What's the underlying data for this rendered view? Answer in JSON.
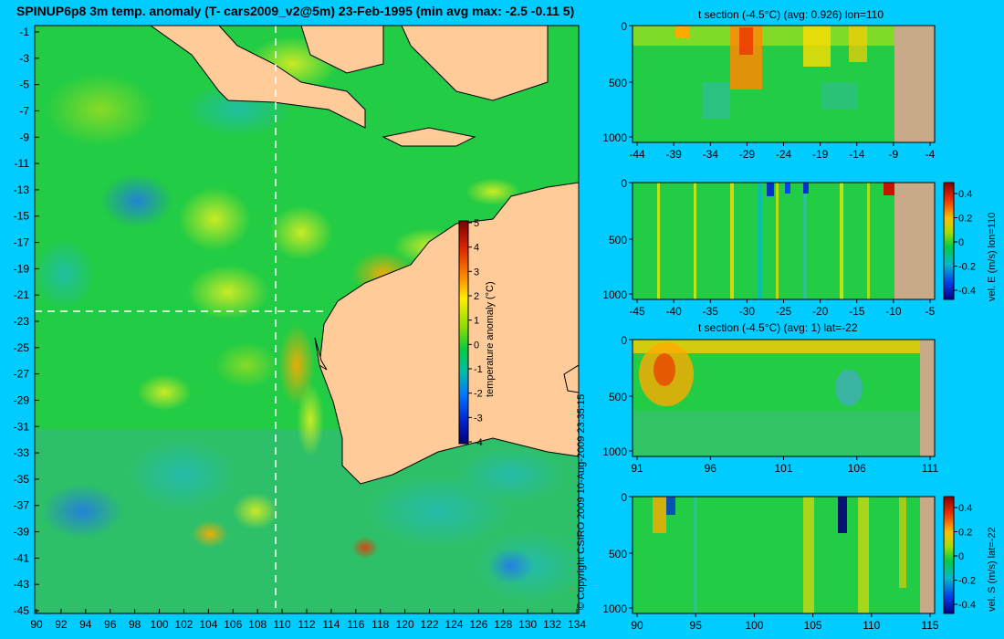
{
  "title": "SPINUP6p8 3m temp. anomaly (T- cars2009_v2@5m) 23-Feb-1995 (min avg max: -2.5 -0.11 5)",
  "copyright": "© Copyright CSIRO 2009   10-Aug-2009 23:35:15",
  "colors": {
    "ocean_base": "#22cc44",
    "land": "#ffcc99",
    "section_land": "#c8aa88",
    "background": "#00ccff"
  },
  "map": {
    "lon_ticks": [
      "90",
      "92",
      "94",
      "96",
      "98",
      "100",
      "102",
      "104",
      "106",
      "108",
      "110",
      "112",
      "114",
      "116",
      "118",
      "120",
      "122",
      "124",
      "126",
      "128",
      "130",
      "132",
      "134"
    ],
    "lat_ticks": [
      "-1",
      "-3",
      "-5",
      "-7",
      "-9",
      "-11",
      "-13",
      "-15",
      "-17",
      "-19",
      "-21",
      "-23",
      "-25",
      "-27",
      "-29",
      "-31",
      "-33",
      "-35",
      "-37",
      "-39",
      "-41",
      "-43",
      "-45"
    ],
    "section_lon": 110,
    "section_lat": -22,
    "colorbar": {
      "label": "temperature anomaly (°C)",
      "ticks": [
        "5",
        "4",
        "3",
        "2",
        "1",
        "0",
        "-1",
        "-2",
        "-3",
        "-4"
      ]
    }
  },
  "panels": [
    {
      "id": "t-section-lon",
      "title": "t section (-4.5°C) (avg: 0.926) lon=110",
      "x_ticks": [
        "-44",
        "-39",
        "-34",
        "-29",
        "-24",
        "-19",
        "-14",
        "-9",
        "-4"
      ],
      "y_ticks": [
        "0",
        "500",
        "1000"
      ]
    },
    {
      "id": "vel-e-lon",
      "title": "",
      "x_ticks": [
        "-45",
        "-40",
        "-35",
        "-30",
        "-25",
        "-20",
        "-15",
        "-10",
        "-5"
      ],
      "y_ticks": [
        "0",
        "500",
        "1000"
      ],
      "colorbar": {
        "label": "vel. E (m/s) lon=110",
        "ticks": [
          "0.4",
          "0.2",
          "0",
          "-0.2",
          "-0.4"
        ]
      }
    },
    {
      "id": "t-section-lat",
      "title": "t section (-4.5°C) (avg: 1) lat=-22",
      "x_ticks": [
        "91",
        "96",
        "101",
        "106",
        "111"
      ],
      "y_ticks": [
        "0",
        "500",
        "1000"
      ]
    },
    {
      "id": "vel-s-lat",
      "title": "",
      "x_ticks": [
        "90",
        "95",
        "100",
        "105",
        "110",
        "115"
      ],
      "y_ticks": [
        "0",
        "500",
        "1000"
      ],
      "colorbar": {
        "label": "vel. S (m/s) lat=-22",
        "ticks": [
          "0.4",
          "0.2",
          "0",
          "-0.2",
          "-0.4"
        ]
      }
    }
  ]
}
